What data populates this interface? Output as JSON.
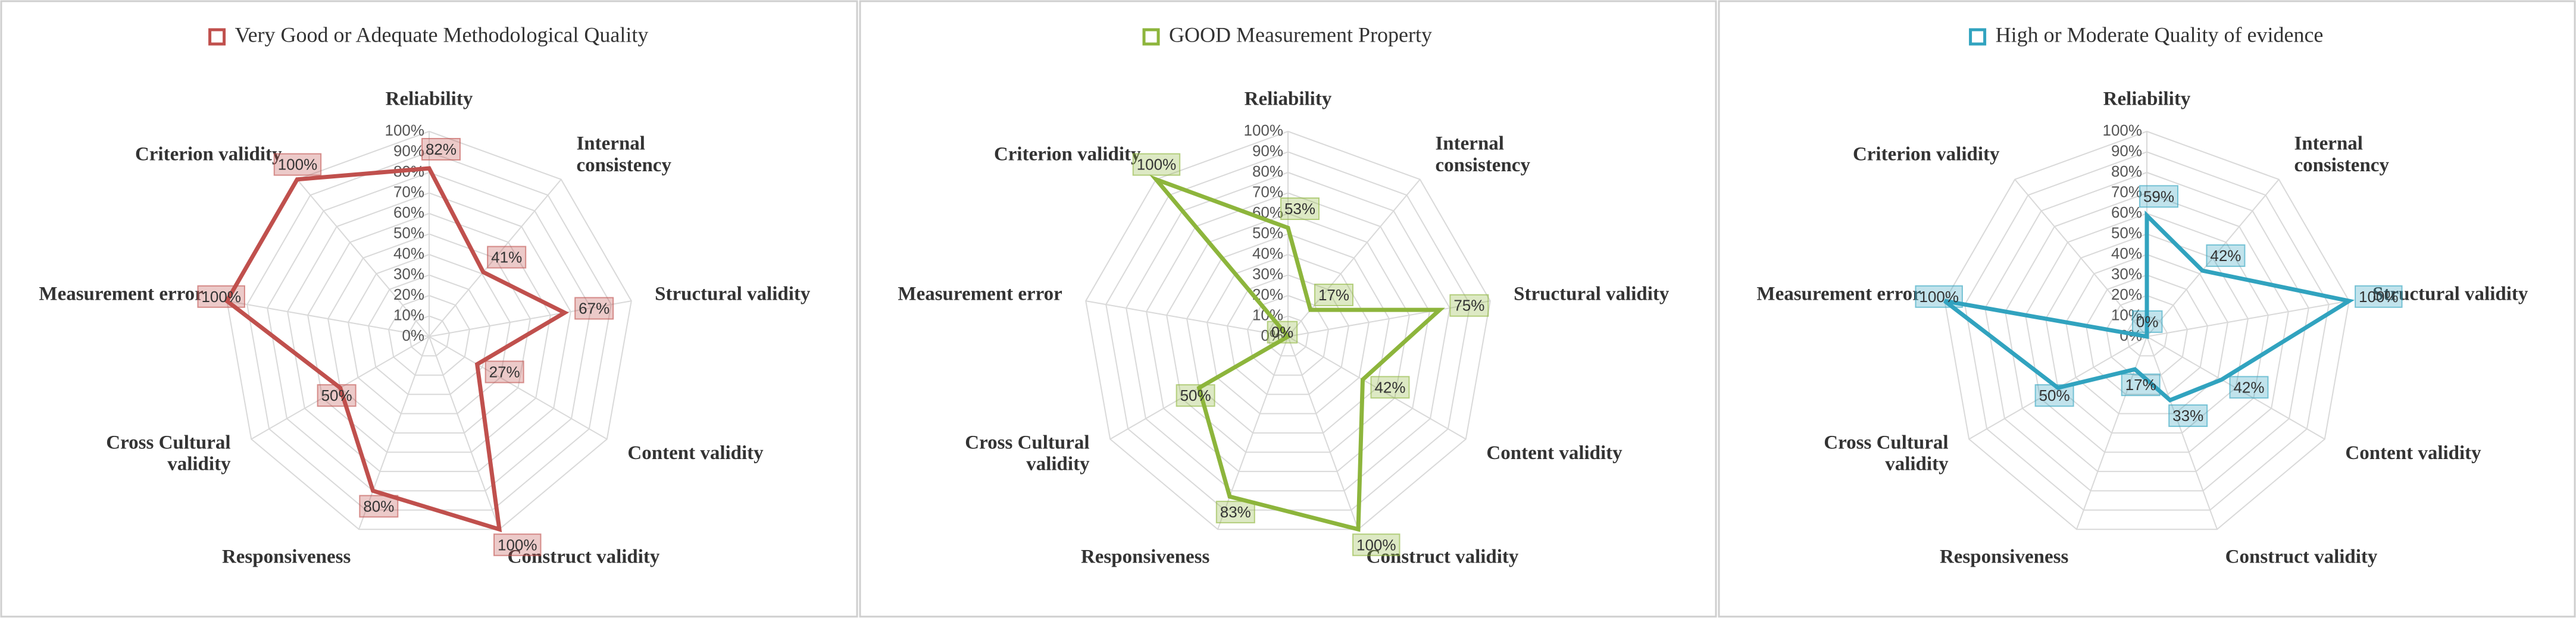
{
  "chart_data": [
    {
      "type": "radar",
      "categories": [
        "Reliability",
        "Internal consistency",
        "Structural validity",
        "Content validity",
        "Construct validity",
        "Responsiveness",
        "Cross Cultural validity",
        "Measurement error",
        "Criterion validity"
      ],
      "series": [
        {
          "name": "Very Good or Adequate Methodological Quality",
          "color": "#c0504d",
          "values": [
            82,
            41,
            67,
            27,
            100,
            80,
            50,
            100,
            100
          ],
          "value_labels": [
            "82%",
            "41%",
            "67%",
            "27%",
            "100%",
            "80%",
            "50%",
            "100%",
            "100%"
          ]
        }
      ],
      "rlim": [
        0,
        100
      ],
      "rticks": [
        {
          "value": 0,
          "label": "0%"
        },
        {
          "value": 10,
          "label": "10%"
        },
        {
          "value": 20,
          "label": "20%"
        },
        {
          "value": 30,
          "label": "30%"
        },
        {
          "value": 40,
          "label": "40%"
        },
        {
          "value": 50,
          "label": "50%"
        },
        {
          "value": 60,
          "label": "60%"
        },
        {
          "value": 70,
          "label": "70%"
        },
        {
          "value": 80,
          "label": "80%"
        },
        {
          "value": 90,
          "label": "90%"
        },
        {
          "value": 100,
          "label": "100%"
        }
      ],
      "grid": true
    },
    {
      "type": "radar",
      "categories": [
        "Reliability",
        "Internal consistency",
        "Structural validity",
        "Content validity",
        "Construct validity",
        "Responsiveness",
        "Cross Cultural validity",
        "Measurement error",
        "Criterion validity"
      ],
      "series": [
        {
          "name": "GOOD Measurement Property",
          "color": "#8db53c",
          "values": [
            53,
            17,
            75,
            42,
            100,
            83,
            50,
            0,
            100
          ],
          "value_labels": [
            "53%",
            "17%",
            "75%",
            "42%",
            "100%",
            "83%",
            "50%",
            "0%",
            "100%"
          ]
        }
      ],
      "rlim": [
        0,
        100
      ],
      "rticks": [
        {
          "value": 0,
          "label": "0%"
        },
        {
          "value": 10,
          "label": "10%"
        },
        {
          "value": 20,
          "label": "20%"
        },
        {
          "value": 30,
          "label": "30%"
        },
        {
          "value": 40,
          "label": "40%"
        },
        {
          "value": 50,
          "label": "50%"
        },
        {
          "value": 60,
          "label": "60%"
        },
        {
          "value": 70,
          "label": "70%"
        },
        {
          "value": 80,
          "label": "80%"
        },
        {
          "value": 90,
          "label": "90%"
        },
        {
          "value": 100,
          "label": "100%"
        }
      ],
      "grid": true
    },
    {
      "type": "radar",
      "categories": [
        "Reliability",
        "Internal consistency",
        "Structural validity",
        "Content validity",
        "Construct validity",
        "Responsiveness",
        "Cross Cultural validity",
        "Measurement error",
        "Criterion validity"
      ],
      "series": [
        {
          "name": "High or Moderate Quality of evidence",
          "color": "#31a3bf",
          "values": [
            59,
            42,
            100,
            42,
            33,
            17,
            50,
            100,
            0
          ],
          "value_labels": [
            "59%",
            "42%",
            "100%",
            "42%",
            "33%",
            "17%",
            "50%",
            "100%",
            "0%"
          ]
        }
      ],
      "rlim": [
        0,
        100
      ],
      "rticks": [
        {
          "value": 0,
          "label": "0%"
        },
        {
          "value": 10,
          "label": "10%"
        },
        {
          "value": 20,
          "label": "20%"
        },
        {
          "value": 30,
          "label": "30%"
        },
        {
          "value": 40,
          "label": "40%"
        },
        {
          "value": 50,
          "label": "50%"
        },
        {
          "value": 60,
          "label": "60%"
        },
        {
          "value": 70,
          "label": "70%"
        },
        {
          "value": 80,
          "label": "80%"
        },
        {
          "value": 90,
          "label": "90%"
        },
        {
          "value": 100,
          "label": "100%"
        }
      ],
      "grid": true
    }
  ]
}
